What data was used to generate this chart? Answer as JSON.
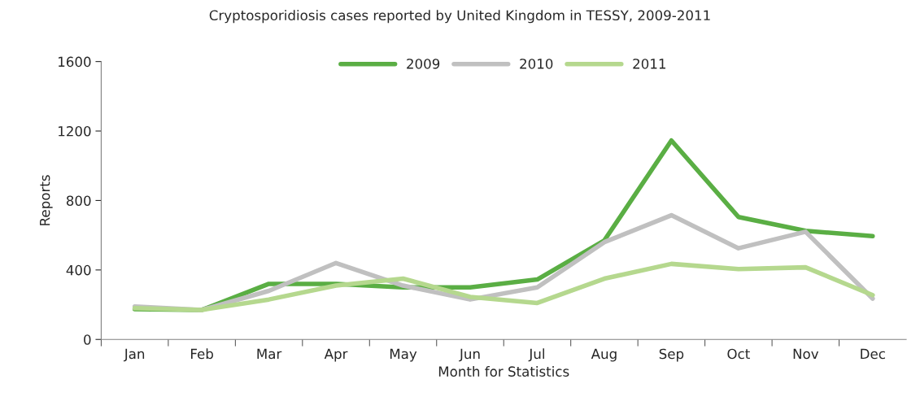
{
  "chart_data": {
    "type": "line",
    "title": "Cryptosporidiosis cases reported by United Kingdom in TESSY, 2009-2011",
    "xlabel": "Month for Statistics",
    "ylabel": "Reports",
    "categories": [
      "Jan",
      "Feb",
      "Mar",
      "Apr",
      "May",
      "Jun",
      "Jul",
      "Aug",
      "Sep",
      "Oct",
      "Nov",
      "Dec"
    ],
    "series": [
      {
        "name": "2009",
        "color": "#5aae44",
        "values": [
          175,
          170,
          320,
          320,
          300,
          300,
          345,
          570,
          1145,
          705,
          625,
          595
        ]
      },
      {
        "name": "2010",
        "color": "#c0c0c0",
        "values": [
          190,
          170,
          280,
          440,
          310,
          230,
          300,
          560,
          715,
          525,
          620,
          235
        ]
      },
      {
        "name": "2011",
        "color": "#b5d88e",
        "values": [
          180,
          170,
          230,
          310,
          350,
          245,
          210,
          350,
          435,
          405,
          415,
          255
        ]
      }
    ],
    "ylim": [
      0,
      1600
    ],
    "yticks": [
      0,
      400,
      800,
      1200,
      1600
    ],
    "grid": false,
    "legend": "top",
    "marker": "none",
    "line_style": "solid"
  }
}
